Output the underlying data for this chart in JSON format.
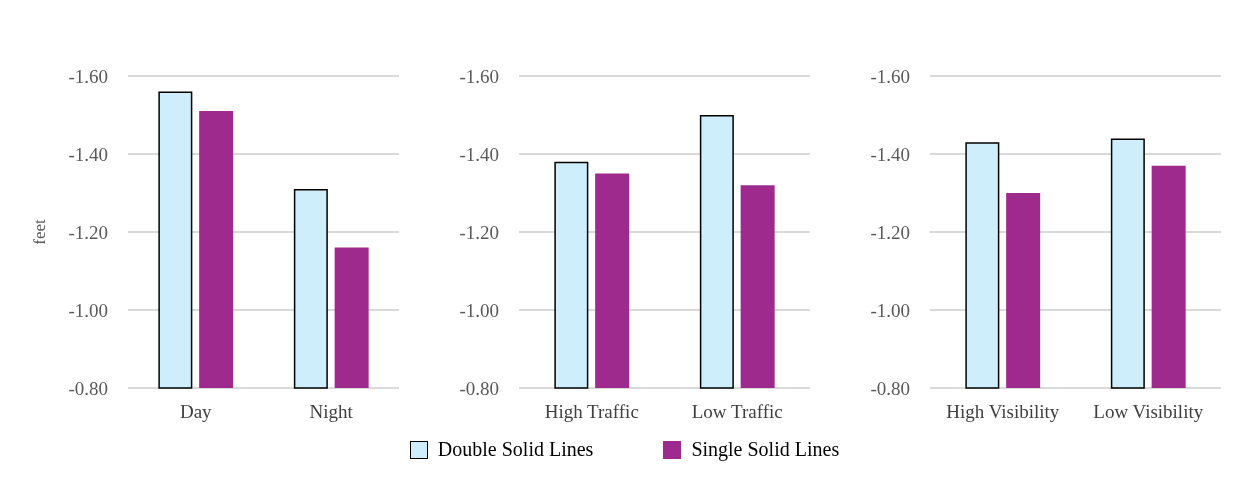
{
  "chart_data": [
    {
      "type": "bar",
      "ylabel": "feet",
      "categories": [
        "Day",
        "Night"
      ],
      "ylim": [
        -0.8,
        -1.6
      ],
      "yticks": [
        {
          "value": -1.6,
          "label": "-1.60"
        },
        {
          "value": -1.4,
          "label": "-1.40"
        },
        {
          "value": -1.2,
          "label": "-1.20"
        },
        {
          "value": -1.0,
          "label": "-1.00"
        },
        {
          "value": -0.8,
          "label": "-0.80"
        }
      ],
      "grid": "y",
      "series": [
        {
          "color": "#cdeefa",
          "values": [
            -1.56,
            -1.31
          ]
        },
        {
          "color": "#9e2a8e",
          "values": [
            -1.51,
            -1.16
          ]
        }
      ]
    },
    {
      "type": "bar",
      "categories": [
        "High Traffic",
        "Low Traffic"
      ],
      "ylim": [
        -0.8,
        -1.6
      ],
      "yticks": [
        {
          "value": -1.6,
          "label": "-1.60"
        },
        {
          "value": -1.4,
          "label": "-1.40"
        },
        {
          "value": -1.2,
          "label": "-1.20"
        },
        {
          "value": -1.0,
          "label": "-1.00"
        },
        {
          "value": -0.8,
          "label": "-0.80"
        }
      ],
      "grid": "y",
      "legend": "bottom",
      "series": [
        {
          "name": "Double Solid Lines",
          "color": "#cdeefa",
          "values": [
            -1.38,
            -1.5
          ]
        },
        {
          "name": "Single Solid Lines",
          "color": "#9e2a8e",
          "values": [
            -1.35,
            -1.32
          ]
        }
      ]
    },
    {
      "type": "bar",
      "categories": [
        "High Visibility",
        "Low Visibility"
      ],
      "ylim": [
        -0.8,
        -1.6
      ],
      "yticks": [
        {
          "value": -1.6,
          "label": "-1.60"
        },
        {
          "value": -1.4,
          "label": "-1.40"
        },
        {
          "value": -1.2,
          "label": "-1.20"
        },
        {
          "value": -1.0,
          "label": "-1.00"
        },
        {
          "value": -0.8,
          "label": "-0.80"
        }
      ],
      "grid": "y",
      "series": [
        {
          "color": "#cdeefa",
          "values": [
            -1.43,
            -1.44
          ]
        },
        {
          "color": "#9e2a8e",
          "values": [
            -1.3,
            -1.37
          ]
        }
      ]
    }
  ]
}
